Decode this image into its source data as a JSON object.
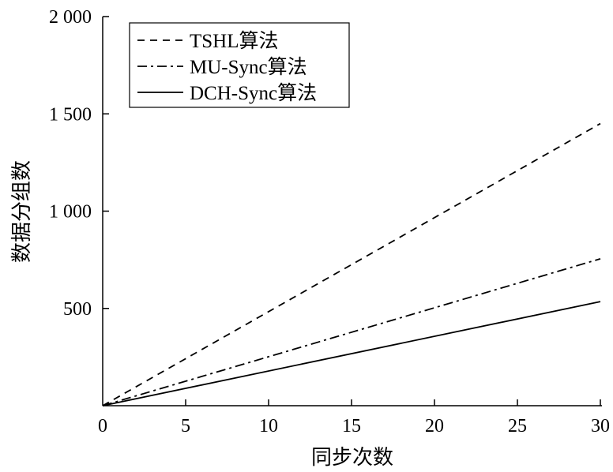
{
  "chart_data": {
    "type": "line",
    "xlabel": "同步次数",
    "ylabel": "数据分组数",
    "xlim": [
      0,
      30
    ],
    "ylim": [
      0,
      2000
    ],
    "xticks": [
      0,
      5,
      10,
      15,
      20,
      25,
      30
    ],
    "yticks": [
      500,
      1000,
      1500,
      2000
    ],
    "xtick_labels": [
      "0",
      "5",
      "10",
      "15",
      "20",
      "25",
      "30"
    ],
    "ytick_labels": [
      "500",
      "1 000",
      "1 500",
      "2 000"
    ],
    "grid": false,
    "legend_position": "top-left",
    "series": [
      {
        "name": "TSHL算法",
        "style": "dashed",
        "color": "#000000",
        "x": [
          0,
          30
        ],
        "y": [
          0,
          1450
        ]
      },
      {
        "name": "MU-Sync算法",
        "style": "dash-dot",
        "color": "#000000",
        "x": [
          0,
          30
        ],
        "y": [
          0,
          755
        ]
      },
      {
        "name": "DCH-Sync算法",
        "style": "solid",
        "color": "#000000",
        "x": [
          0,
          30
        ],
        "y": [
          0,
          535
        ]
      }
    ]
  }
}
